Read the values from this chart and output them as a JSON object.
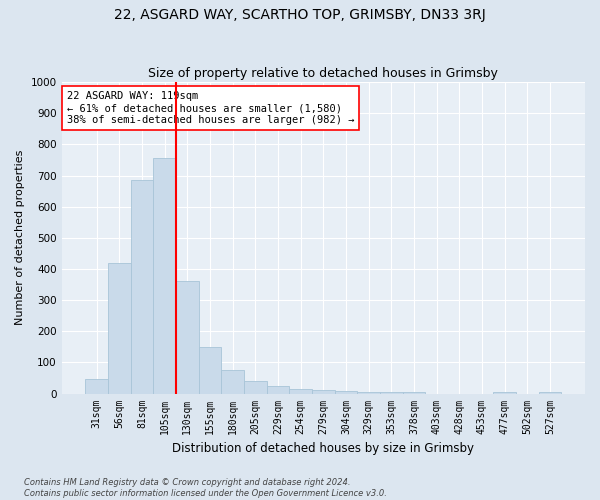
{
  "title": "22, ASGARD WAY, SCARTHO TOP, GRIMSBY, DN33 3RJ",
  "subtitle": "Size of property relative to detached houses in Grimsby",
  "xlabel": "Distribution of detached houses by size in Grimsby",
  "ylabel": "Number of detached properties",
  "footnote": "Contains HM Land Registry data © Crown copyright and database right 2024.\nContains public sector information licensed under the Open Government Licence v3.0.",
  "bar_labels": [
    "31sqm",
    "56sqm",
    "81sqm",
    "105sqm",
    "130sqm",
    "155sqm",
    "180sqm",
    "205sqm",
    "229sqm",
    "254sqm",
    "279sqm",
    "304sqm",
    "329sqm",
    "353sqm",
    "378sqm",
    "403sqm",
    "428sqm",
    "453sqm",
    "477sqm",
    "502sqm",
    "527sqm"
  ],
  "bar_values": [
    47,
    420,
    685,
    755,
    360,
    148,
    75,
    40,
    25,
    15,
    12,
    8,
    5,
    4,
    4,
    0,
    0,
    0,
    4,
    0,
    4
  ],
  "bar_color": "#c9daea",
  "bar_edgecolor": "#a8c4d8",
  "vline_x": 3.5,
  "vline_color": "red",
  "annotation_text": "22 ASGARD WAY: 119sqm\n← 61% of detached houses are smaller (1,580)\n38% of semi-detached houses are larger (982) →",
  "annotation_box_color": "white",
  "annotation_box_edgecolor": "red",
  "ylim": [
    0,
    1000
  ],
  "yticks": [
    0,
    100,
    200,
    300,
    400,
    500,
    600,
    700,
    800,
    900,
    1000
  ],
  "bg_color": "#dce6f0",
  "plot_bg_color": "#e8eff6",
  "grid_color": "white",
  "title_fontsize": 10,
  "subtitle_fontsize": 9,
  "ylabel_fontsize": 8,
  "xlabel_fontsize": 8.5,
  "annotation_fontsize": 7.5,
  "tick_fontsize": 7,
  "ytick_fontsize": 7.5,
  "footnote_fontsize": 6
}
